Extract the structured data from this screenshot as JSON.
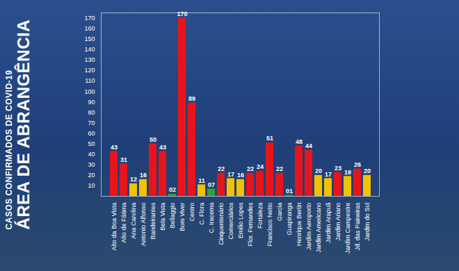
{
  "chart_data": {
    "type": "bar",
    "title": "ÁREA DE ABRANGÊNCIA",
    "subtitle": "CASOS CONFIRMADOS DE COVID-19",
    "categories": [
      "Alto da Boa Vista",
      "Alto de Fátima",
      "Ana Carolina",
      "Antonio Alfonso",
      "Bandeirantes",
      "Bela Vista",
      "Bellaggio",
      "Bom Viver",
      "Centro",
      "C. Flora",
      "C. Iracema",
      "Cinquentenário",
      "Comerciários",
      "Emilio Lopes",
      "Flor. Fernandes",
      "Fortaleza",
      "Francisco Netto",
      "Garcia",
      "Guapiranga",
      "Henrique Bertin",
      "Jardim Aeroporto",
      "Jardim Americano",
      "Jardim Arapuã",
      "Jardim Ariano",
      "Jardim Campestre",
      "Jd. das Paineiras",
      "Jardim do Sol"
    ],
    "values": [
      43,
      31,
      12,
      16,
      50,
      43,
      2,
      170,
      89,
      11,
      7,
      22,
      17,
      16,
      22,
      24,
      51,
      22,
      1,
      48,
      44,
      20,
      17,
      23,
      19,
      26,
      20
    ],
    "value_labels": [
      "43",
      "31",
      "12",
      "16",
      "50",
      "43",
      "02",
      "170",
      "89",
      "11",
      "07",
      "22",
      "17",
      "16",
      "22",
      "24",
      "51",
      "22",
      "01",
      "48",
      "44",
      "20",
      "17",
      "23",
      "19",
      "26",
      "20"
    ],
    "colors": [
      "#e8141b",
      "#e8141b",
      "#f2c200",
      "#f2c200",
      "#e8141b",
      "#e8141b",
      "#2ea43a",
      "#e8141b",
      "#e8141b",
      "#f2c200",
      "#2ea43a",
      "#e8141b",
      "#f2c200",
      "#f2c200",
      "#e8141b",
      "#e8141b",
      "#e8141b",
      "#e8141b",
      "#2ea43a",
      "#e8141b",
      "#e8141b",
      "#f2c200",
      "#f2c200",
      "#e8141b",
      "#f2c200",
      "#e8141b",
      "#f2c200"
    ],
    "ylim": [
      0,
      175
    ],
    "yticks": [
      10,
      20,
      30,
      40,
      50,
      60,
      70,
      80,
      90,
      100,
      110,
      120,
      130,
      140,
      150,
      160,
      170
    ],
    "grid": false,
    "data_labels": true
  }
}
